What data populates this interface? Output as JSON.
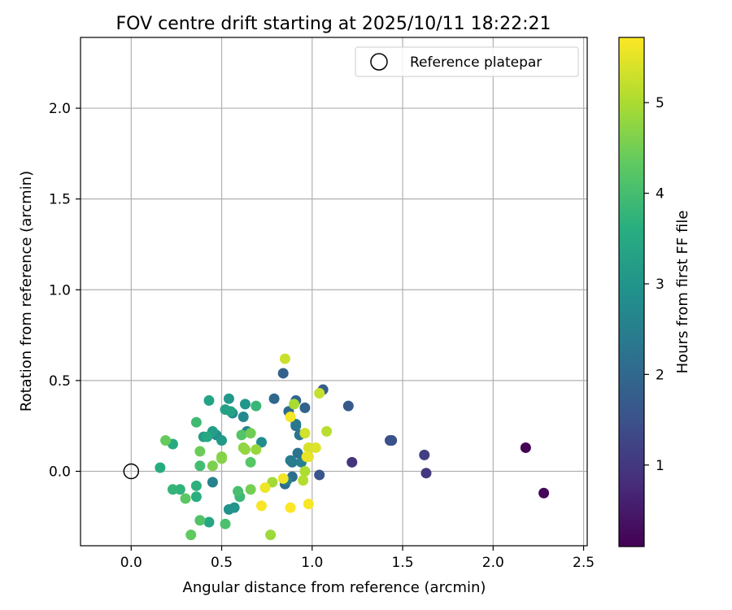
{
  "chart_data": {
    "type": "scatter",
    "title": "FOV centre drift starting at 2025/10/11 18:22:21",
    "xlabel": "Angular distance from reference (arcmin)",
    "ylabel": "Rotation from reference (arcmin)",
    "xlim": [
      -0.28,
      2.52
    ],
    "ylim": [
      -0.41,
      2.39
    ],
    "xticks": [
      "0.0",
      "0.5",
      "1.0",
      "1.5",
      "2.0",
      "2.5"
    ],
    "xtick_values": [
      0,
      0.5,
      1.0,
      1.5,
      2.0,
      2.5
    ],
    "yticks": [
      "0.0",
      "0.5",
      "1.0",
      "1.5",
      "2.0"
    ],
    "ytick_values": [
      0,
      0.5,
      1.0,
      1.5,
      2.0
    ],
    "grid": true,
    "legend": {
      "position": "top-right",
      "label": "Reference platepar"
    },
    "reference_point": {
      "x": 0.0,
      "y": 0.0
    },
    "colorbar": {
      "label": "Hours from first FF file",
      "range": [
        0.1,
        5.72
      ],
      "ticks": [
        "1",
        "2",
        "3",
        "4",
        "5"
      ],
      "tick_values": [
        1,
        2,
        3,
        4,
        5
      ],
      "colormap": "viridis"
    },
    "points": [
      {
        "x": 2.18,
        "y": 0.13,
        "h": 0.12
      },
      {
        "x": 2.28,
        "y": -0.12,
        "h": 0.2
      },
      {
        "x": 1.22,
        "y": 0.05,
        "h": 0.95
      },
      {
        "x": 1.63,
        "y": -0.01,
        "h": 1.05
      },
      {
        "x": 1.62,
        "y": 0.09,
        "h": 1.15
      },
      {
        "x": 1.43,
        "y": 0.17,
        "h": 1.45
      },
      {
        "x": 1.44,
        "y": 0.17,
        "h": 1.5
      },
      {
        "x": 1.04,
        "y": -0.02,
        "h": 1.6
      },
      {
        "x": 1.2,
        "y": 0.36,
        "h": 1.7
      },
      {
        "x": 1.06,
        "y": 0.45,
        "h": 1.8
      },
      {
        "x": 0.84,
        "y": 0.54,
        "h": 1.85
      },
      {
        "x": 0.96,
        "y": 0.35,
        "h": 1.9
      },
      {
        "x": 0.91,
        "y": 0.39,
        "h": 1.95
      },
      {
        "x": 0.79,
        "y": 0.4,
        "h": 2.0
      },
      {
        "x": 0.87,
        "y": 0.33,
        "h": 2.05
      },
      {
        "x": 0.85,
        "y": -0.07,
        "h": 2.1
      },
      {
        "x": 0.89,
        "y": -0.03,
        "h": 2.15
      },
      {
        "x": 0.91,
        "y": 0.25,
        "h": 2.2
      },
      {
        "x": 0.92,
        "y": 0.1,
        "h": 2.25
      },
      {
        "x": 0.93,
        "y": 0.2,
        "h": 2.3
      },
      {
        "x": 0.89,
        "y": 0.05,
        "h": 2.35
      },
      {
        "x": 0.91,
        "y": 0.26,
        "h": 2.4
      },
      {
        "x": 0.88,
        "y": 0.06,
        "h": 2.45
      },
      {
        "x": 0.86,
        "y": -0.05,
        "h": 2.5
      },
      {
        "x": 0.94,
        "y": 0.05,
        "h": 2.55
      },
      {
        "x": 0.45,
        "y": -0.06,
        "h": 2.6
      },
      {
        "x": 0.64,
        "y": 0.22,
        "h": 2.65
      },
      {
        "x": 0.62,
        "y": 0.3,
        "h": 2.75
      },
      {
        "x": 0.56,
        "y": 0.32,
        "h": 2.8
      },
      {
        "x": 0.72,
        "y": 0.16,
        "h": 2.85
      },
      {
        "x": 0.47,
        "y": 0.2,
        "h": 2.9
      },
      {
        "x": 0.54,
        "y": -0.21,
        "h": 2.95
      },
      {
        "x": 0.57,
        "y": -0.2,
        "h": 3.0
      },
      {
        "x": 0.63,
        "y": 0.37,
        "h": 3.05
      },
      {
        "x": 0.54,
        "y": 0.4,
        "h": 3.1
      },
      {
        "x": 0.5,
        "y": 0.17,
        "h": 3.15
      },
      {
        "x": 0.4,
        "y": 0.19,
        "h": 3.2
      },
      {
        "x": 0.45,
        "y": 0.22,
        "h": 3.25
      },
      {
        "x": 0.52,
        "y": 0.34,
        "h": 3.3
      },
      {
        "x": 0.55,
        "y": 0.33,
        "h": 3.35
      },
      {
        "x": 0.43,
        "y": 0.39,
        "h": 3.4
      },
      {
        "x": 0.43,
        "y": -0.28,
        "h": 3.45
      },
      {
        "x": 0.42,
        "y": 0.19,
        "h": 3.5
      },
      {
        "x": 0.23,
        "y": 0.15,
        "h": 3.55
      },
      {
        "x": 0.16,
        "y": 0.02,
        "h": 3.6
      },
      {
        "x": 0.36,
        "y": -0.14,
        "h": 3.65
      },
      {
        "x": 0.36,
        "y": -0.08,
        "h": 3.7
      },
      {
        "x": 0.27,
        "y": -0.1,
        "h": 3.75
      },
      {
        "x": 0.23,
        "y": -0.1,
        "h": 3.8
      },
      {
        "x": 0.69,
        "y": 0.36,
        "h": 3.85
      },
      {
        "x": 0.6,
        "y": -0.14,
        "h": 3.9
      },
      {
        "x": 0.36,
        "y": 0.27,
        "h": 3.95
      },
      {
        "x": 0.38,
        "y": 0.03,
        "h": 4.0
      },
      {
        "x": 0.59,
        "y": -0.11,
        "h": 4.05
      },
      {
        "x": 0.52,
        "y": -0.29,
        "h": 4.1
      },
      {
        "x": 0.38,
        "y": -0.27,
        "h": 4.15
      },
      {
        "x": 0.61,
        "y": 0.2,
        "h": 4.2
      },
      {
        "x": 0.66,
        "y": 0.05,
        "h": 4.25
      },
      {
        "x": 0.3,
        "y": -0.15,
        "h": 4.3
      },
      {
        "x": 0.33,
        "y": -0.35,
        "h": 4.35
      },
      {
        "x": 0.19,
        "y": 0.17,
        "h": 4.4
      },
      {
        "x": 0.38,
        "y": 0.11,
        "h": 4.45
      },
      {
        "x": 0.66,
        "y": 0.21,
        "h": 4.5
      },
      {
        "x": 0.66,
        "y": -0.1,
        "h": 4.55
      },
      {
        "x": 0.45,
        "y": 0.03,
        "h": 4.6
      },
      {
        "x": 0.5,
        "y": 0.08,
        "h": 4.65
      },
      {
        "x": 0.5,
        "y": 0.07,
        "h": 4.7
      },
      {
        "x": 0.62,
        "y": 0.13,
        "h": 4.75
      },
      {
        "x": 0.63,
        "y": 0.12,
        "h": 4.8
      },
      {
        "x": 0.69,
        "y": 0.12,
        "h": 4.85
      },
      {
        "x": 0.77,
        "y": -0.35,
        "h": 4.9
      },
      {
        "x": 0.78,
        "y": -0.06,
        "h": 4.95
      },
      {
        "x": 0.9,
        "y": 0.37,
        "h": 5.0
      },
      {
        "x": 0.96,
        "y": 0.0,
        "h": 5.05
      },
      {
        "x": 0.95,
        "y": -0.05,
        "h": 5.1
      },
      {
        "x": 1.08,
        "y": 0.22,
        "h": 5.15
      },
      {
        "x": 1.04,
        "y": 0.43,
        "h": 5.25
      },
      {
        "x": 0.85,
        "y": 0.62,
        "h": 5.3
      },
      {
        "x": 0.96,
        "y": 0.21,
        "h": 5.35
      },
      {
        "x": 0.98,
        "y": 0.13,
        "h": 5.4
      },
      {
        "x": 1.02,
        "y": 0.13,
        "h": 5.45
      },
      {
        "x": 0.98,
        "y": 0.08,
        "h": 5.5
      },
      {
        "x": 0.97,
        "y": 0.08,
        "h": 5.55
      },
      {
        "x": 0.74,
        "y": -0.09,
        "h": 5.6
      },
      {
        "x": 0.84,
        "y": -0.04,
        "h": 5.62
      },
      {
        "x": 0.88,
        "y": 0.3,
        "h": 5.65
      },
      {
        "x": 0.98,
        "y": -0.18,
        "h": 5.66
      },
      {
        "x": 0.72,
        "y": -0.19,
        "h": 5.68
      },
      {
        "x": 0.88,
        "y": -0.2,
        "h": 5.7
      }
    ]
  }
}
